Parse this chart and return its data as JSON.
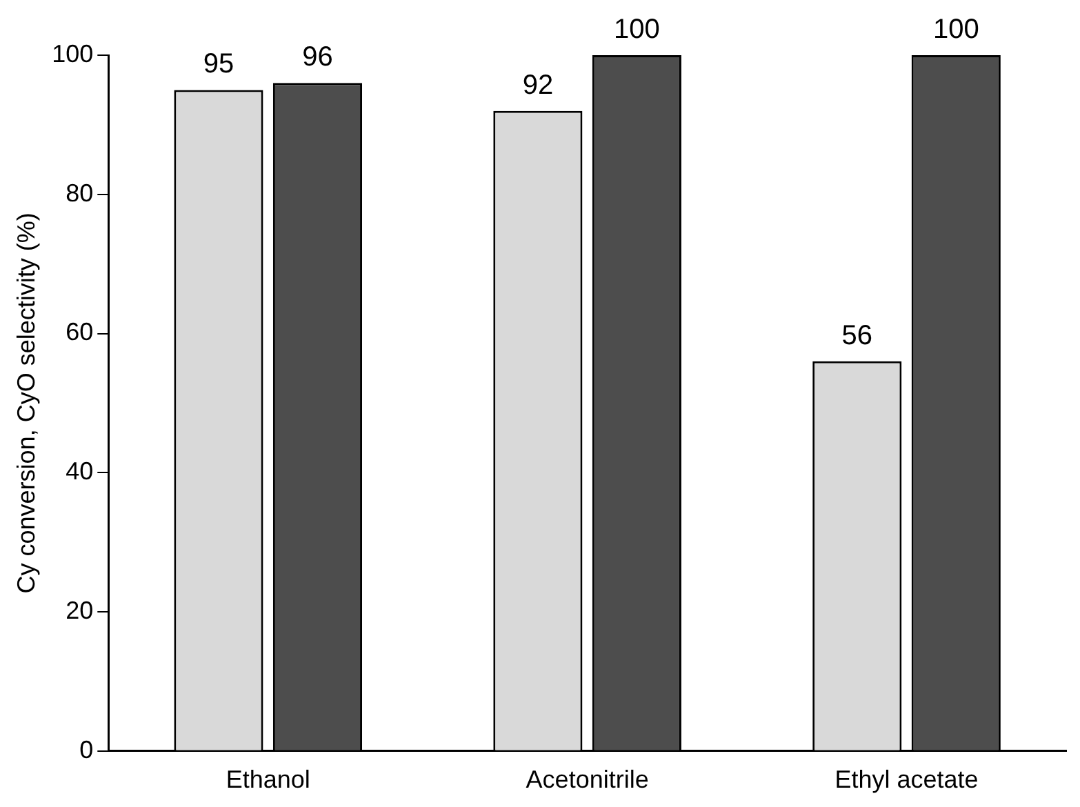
{
  "chart_data": {
    "type": "bar",
    "ylabel": "Cy conversion, CyO selectivity (%)",
    "categories": [
      "Ethanol",
      "Acetonitrile",
      "Ethyl acetate"
    ],
    "series": [
      {
        "color": "#d9d9d9",
        "values": [
          95,
          92,
          56
        ]
      },
      {
        "color": "#4d4d4d",
        "values": [
          96,
          100,
          100
        ]
      }
    ],
    "ylim": [
      0,
      100
    ],
    "yticks": [
      0,
      20,
      40,
      60,
      80,
      100
    ],
    "grid": false,
    "legend": false,
    "data_labels": true
  }
}
